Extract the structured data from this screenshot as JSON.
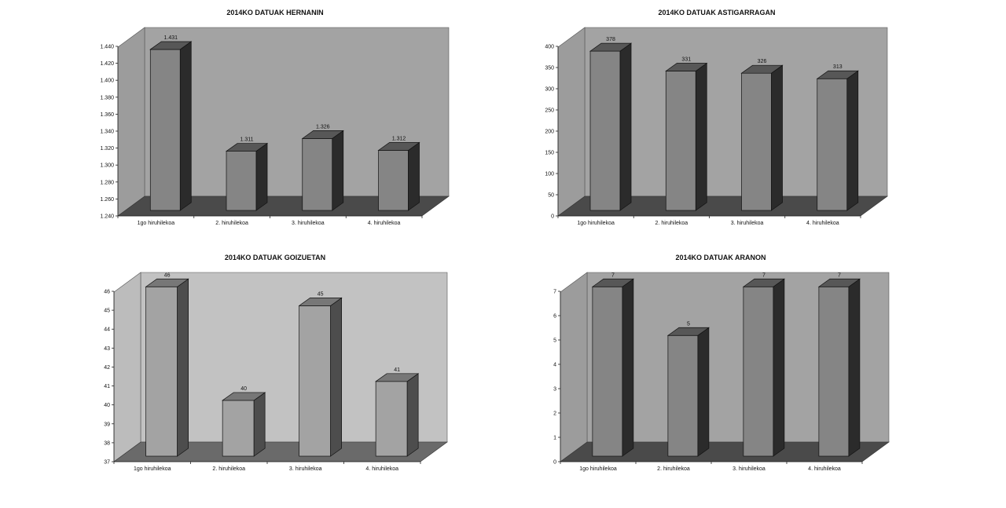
{
  "chart_data": [
    {
      "type": "bar",
      "title": "2014KO DATUAK HERNANIN",
      "categories": [
        "1go hiruhilekoa",
        "2. hiruhilekoa",
        "3. hiruhilekoa",
        "4. hiruhilekoa"
      ],
      "values": [
        1431,
        1311,
        1326,
        1312
      ],
      "value_labels": [
        "1.431",
        "1.311",
        "1.326",
        "1.312"
      ],
      "ylim": [
        1240,
        1440
      ],
      "yticks": [
        "1.240",
        "1.260",
        "1.280",
        "1.300",
        "1.320",
        "1.340",
        "1.360",
        "1.380",
        "1.400",
        "1.420",
        "1.440"
      ],
      "three_d": true,
      "colors": {
        "back_wall": "#a3a3a3",
        "side_wall": "#9c9c9c",
        "floor": "#4a4a4a",
        "bar_front": "#858585",
        "bar_side": "#2b2b2b",
        "bar_top": "#575757"
      }
    },
    {
      "type": "bar",
      "title": "2014KO DATUAK ASTIGARRAGAN",
      "categories": [
        "1go hiruhilekoa",
        "2. hiruhilekoa",
        "3. hiruhilekoa",
        "4. hiruhilekoa"
      ],
      "values": [
        378,
        331,
        326,
        313
      ],
      "value_labels": [
        "378",
        "331",
        "326",
        "313"
      ],
      "ylim": [
        0,
        400
      ],
      "yticks": [
        "0",
        "50",
        "100",
        "150",
        "200",
        "250",
        "300",
        "350",
        "400"
      ],
      "three_d": true,
      "colors": {
        "back_wall": "#a3a3a3",
        "side_wall": "#9c9c9c",
        "floor": "#4a4a4a",
        "bar_front": "#858585",
        "bar_side": "#2b2b2b",
        "bar_top": "#575757"
      }
    },
    {
      "type": "bar",
      "title": "2014KO DATUAK GOIZUETAN",
      "categories": [
        "1go hiruhilekoa",
        "2. hiruhilekoa",
        "3. hiruhilekoa",
        "4. hiruhilekoa"
      ],
      "values": [
        46,
        40,
        45,
        41
      ],
      "value_labels": [
        "46",
        "40",
        "45",
        "41"
      ],
      "ylim": [
        37,
        46
      ],
      "yticks": [
        "37",
        "38",
        "39",
        "40",
        "41",
        "42",
        "43",
        "44",
        "45",
        "46"
      ],
      "three_d": true,
      "colors": {
        "back_wall": "#c2c2c2",
        "side_wall": "#bcbcbc",
        "floor": "#6a6a6a",
        "bar_front": "#a3a3a3",
        "bar_side": "#4d4d4d",
        "bar_top": "#777777"
      }
    },
    {
      "type": "bar",
      "title": "2014KO DATUAK ARANON",
      "categories": [
        "1go hiruhilekoa",
        "2. hiruhilekoa",
        "3. hiruhilekoa",
        "4. hiruhilekoa"
      ],
      "values": [
        7,
        5,
        7,
        7
      ],
      "value_labels": [
        "7",
        "5",
        "7",
        "7"
      ],
      "ylim": [
        0,
        7
      ],
      "yticks": [
        "0",
        "1",
        "2",
        "3",
        "4",
        "5",
        "6",
        "7"
      ],
      "three_d": true,
      "colors": {
        "back_wall": "#a3a3a3",
        "side_wall": "#9c9c9c",
        "floor": "#4a4a4a",
        "bar_front": "#858585",
        "bar_side": "#2b2b2b",
        "bar_top": "#575757"
      }
    }
  ]
}
